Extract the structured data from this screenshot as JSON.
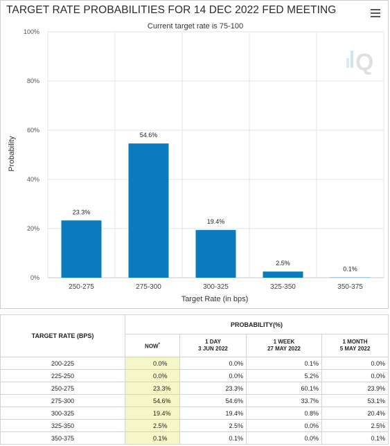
{
  "chart_data": {
    "type": "bar",
    "title": "TARGET RATE PROBABILITIES FOR 14 DEC 2022 FED MEETING",
    "subtitle": "Current target rate is 75-100",
    "xlabel": "Target Rate (in bps)",
    "ylabel": "Probability",
    "categories": [
      "250-275",
      "275-300",
      "300-325",
      "325-350",
      "350-375"
    ],
    "values": [
      23.3,
      54.6,
      19.4,
      2.5,
      0.1
    ],
    "data_labels": [
      "23.3%",
      "54.6%",
      "19.4%",
      "2.5%",
      "0.1%"
    ],
    "yticks": [
      "0%",
      "20%",
      "40%",
      "60%",
      "80%",
      "100%"
    ],
    "ylim": [
      0,
      100
    ],
    "grid": true,
    "bar_color": "#0a7bbf"
  },
  "table": {
    "header_rate": "TARGET RATE (BPS)",
    "header_prob": "PROBABILITY(%)",
    "col_now": "NOW",
    "col_now_mark": "*",
    "col_1day": "1 DAY",
    "col_1day_date": "3 JUN 2022",
    "col_1week": "1 WEEK",
    "col_1week_date": "27 MAY 2022",
    "col_1month": "1 MONTH",
    "col_1month_date": "5 MAY 2022",
    "rows": [
      {
        "rate": "200-225",
        "now": "0.0%",
        "day": "0.0%",
        "week": "0.1%",
        "month": "0.0%"
      },
      {
        "rate": "225-250",
        "now": "0.0%",
        "day": "0.0%",
        "week": "5.2%",
        "month": "0.0%"
      },
      {
        "rate": "250-275",
        "now": "23.3%",
        "day": "23.3%",
        "week": "60.1%",
        "month": "23.9%"
      },
      {
        "rate": "275-300",
        "now": "54.6%",
        "day": "54.6%",
        "week": "33.7%",
        "month": "53.1%"
      },
      {
        "rate": "300-325",
        "now": "19.4%",
        "day": "19.4%",
        "week": "0.8%",
        "month": "20.4%"
      },
      {
        "rate": "325-350",
        "now": "2.5%",
        "day": "2.5%",
        "week": "0.0%",
        "month": "2.5%"
      },
      {
        "rate": "350-375",
        "now": "0.1%",
        "day": "0.1%",
        "week": "0.0%",
        "month": "0.1%"
      }
    ]
  },
  "icons": {
    "menu": "hamburger-menu-icon",
    "watermark": "q-logo-watermark"
  }
}
